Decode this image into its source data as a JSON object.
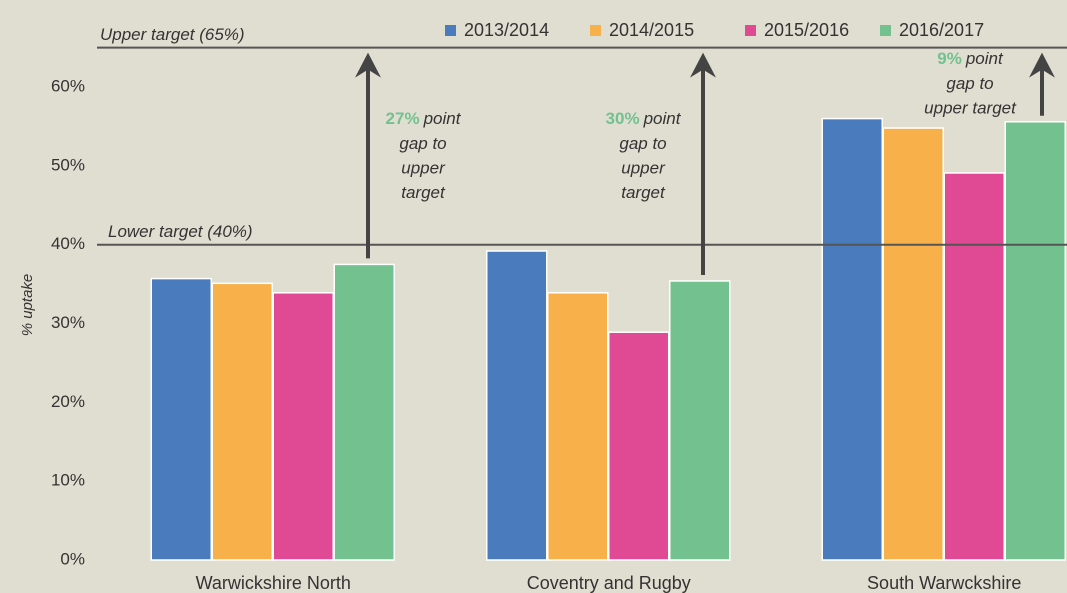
{
  "chart_data": {
    "type": "bar",
    "y_label": "% uptake",
    "categories": [
      "Warwickshire North",
      "Coventry and Rugby",
      "South Warwckshire"
    ],
    "series": [
      {
        "name": "2013/2014",
        "color": "#4a7bbd",
        "values": [
          35.7,
          39.2,
          56.0
        ]
      },
      {
        "name": "2014/2015",
        "color": "#f7b04a",
        "values": [
          35.1,
          33.9,
          54.8
        ]
      },
      {
        "name": "2015/2016",
        "color": "#e04a95",
        "values": [
          33.9,
          28.9,
          49.1
        ]
      },
      {
        "name": "2016/2017",
        "color": "#72c18f",
        "values": [
          37.5,
          35.4,
          55.6
        ]
      }
    ],
    "ylim": [
      0,
      68
    ],
    "yticks": [
      {
        "value": 0,
        "label": "0%"
      },
      {
        "value": 10,
        "label": "10%"
      },
      {
        "value": 20,
        "label": "20%"
      },
      {
        "value": 30,
        "label": "30%"
      },
      {
        "value": 40,
        "label": "40%"
      },
      {
        "value": 50,
        "label": "50%"
      },
      {
        "value": 60,
        "label": "60%"
      }
    ],
    "grid": false,
    "reference_lines": [
      {
        "value": 65,
        "label": "Upper target (65%)"
      },
      {
        "value": 40,
        "label": "Lower target (40%)"
      }
    ],
    "annotations": [
      {
        "highlight": "27%",
        "lines": [
          "point",
          "gap to",
          "upper",
          "target"
        ]
      },
      {
        "highlight": "30%",
        "lines": [
          "point",
          "gap to",
          "upper",
          "target"
        ]
      },
      {
        "highlight": "9%",
        "lines": [
          "point",
          "gap to",
          "upper target"
        ]
      }
    ]
  }
}
